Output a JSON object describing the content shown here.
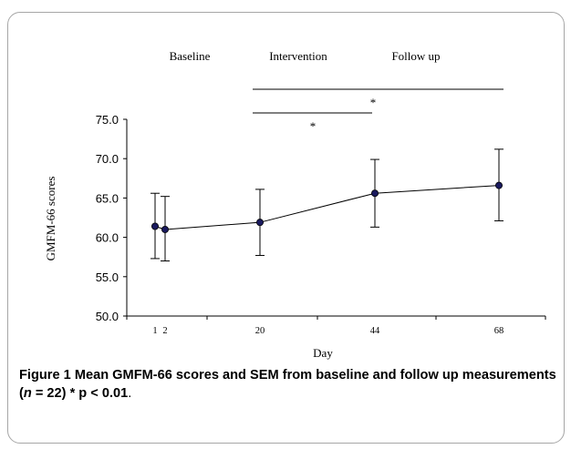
{
  "chart_data": {
    "type": "line",
    "title": "",
    "xlabel": "Day",
    "ylabel": "GMFM-66 scores",
    "ylim": [
      50.0,
      75.0
    ],
    "yticks": [
      "50.0",
      "55.0",
      "60.0",
      "65.0",
      "70.0",
      "75.0"
    ],
    "xticks": [
      "1",
      "2",
      "20",
      "44",
      "68"
    ],
    "x": [
      1,
      2,
      20,
      44,
      68
    ],
    "series": [
      {
        "values": [
          61.4,
          61.0,
          61.9,
          65.6,
          66.6
        ],
        "error_low": [
          57.3,
          57.0,
          57.7,
          61.3,
          62.1
        ],
        "error_high": [
          65.6,
          65.2,
          66.1,
          69.9,
          71.2
        ]
      }
    ],
    "phases": [
      "Baseline",
      "Intervention",
      "Follow up"
    ],
    "significance_marker": "*",
    "line_color": "#000000",
    "marker_color": "#1a1a5e",
    "grid": false,
    "legend": "none"
  },
  "caption": {
    "figure_label": "Figure 1",
    "text_before_n": "Mean GMFM-66 scores and SEM from baseline and follow up measurements (",
    "n_symbol": "n",
    "text_after_n": " = 22) * p < 0.01",
    "trailing": "."
  }
}
